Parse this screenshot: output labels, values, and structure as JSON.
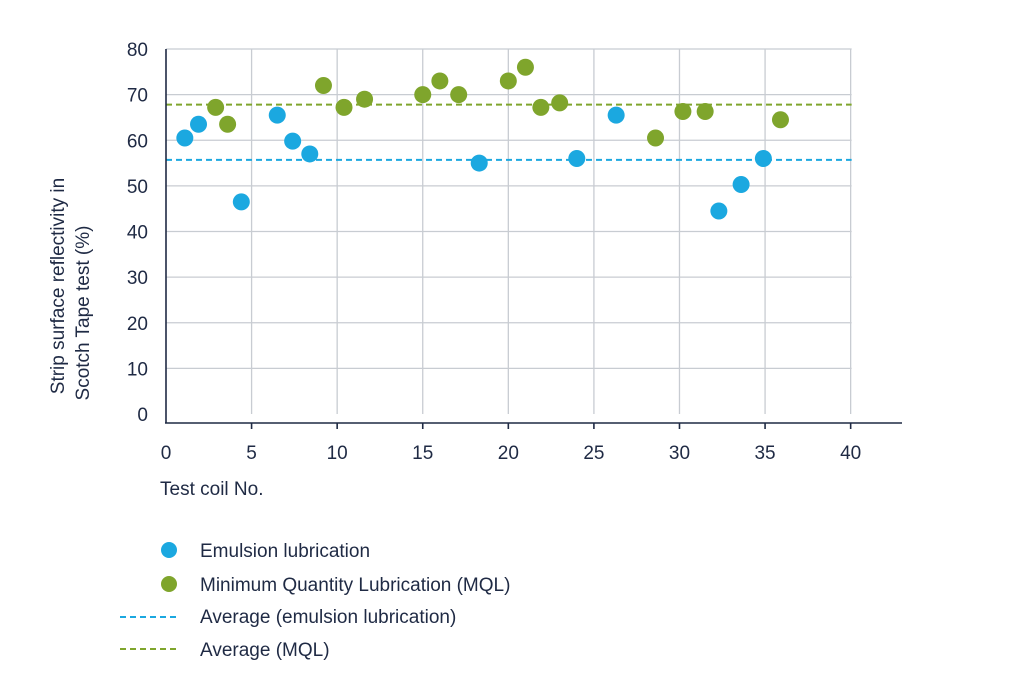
{
  "chart_data": {
    "type": "scatter",
    "xlabel": "Test coil No.",
    "ylabel_lines": [
      "Strip surface reflectivity in",
      "Scotch Tape test (%)"
    ],
    "xlim": [
      0,
      43
    ],
    "ylim": [
      0,
      80
    ],
    "xticks": [
      0,
      5,
      10,
      15,
      20,
      25,
      30,
      35,
      40
    ],
    "yticks": [
      0,
      10,
      20,
      30,
      40,
      50,
      60,
      70,
      80
    ],
    "grid": true,
    "legend_position": "bottom-left",
    "series": [
      {
        "name": "Emulsion lubrication",
        "color": "#1ba8e0",
        "marker": "circle",
        "points": [
          [
            1.1,
            60.5
          ],
          [
            1.9,
            63.5
          ],
          [
            4.4,
            46.5
          ],
          [
            6.5,
            65.5
          ],
          [
            7.4,
            59.8
          ],
          [
            8.4,
            57.0
          ],
          [
            18.3,
            55.0
          ],
          [
            24.0,
            56.0
          ],
          [
            26.3,
            65.5
          ],
          [
            32.3,
            44.5
          ],
          [
            33.6,
            50.3
          ],
          [
            34.9,
            56.0
          ]
        ]
      },
      {
        "name": "Minimum Quantity Lubrication (MQL)",
        "color": "#7fa52c",
        "marker": "circle",
        "points": [
          [
            2.9,
            67.2
          ],
          [
            3.6,
            63.5
          ],
          [
            9.2,
            72.0
          ],
          [
            10.4,
            67.2
          ],
          [
            11.6,
            69.0
          ],
          [
            15.0,
            70.0
          ],
          [
            16.0,
            73.0
          ],
          [
            17.1,
            70.0
          ],
          [
            20.0,
            73.0
          ],
          [
            21.0,
            76.0
          ],
          [
            21.9,
            67.2
          ],
          [
            23.0,
            68.2
          ],
          [
            28.6,
            60.5
          ],
          [
            30.2,
            66.3
          ],
          [
            31.5,
            66.3
          ],
          [
            35.9,
            64.5
          ]
        ]
      }
    ],
    "reference_lines": [
      {
        "name": "Average (emulsion lubrication)",
        "y": 55.7,
        "color": "#1ba8e0",
        "style": "dashed"
      },
      {
        "name": "Average (MQL)",
        "y": 67.8,
        "color": "#7fa52c",
        "style": "dashed"
      }
    ]
  },
  "legend": [
    {
      "label": "Emulsion lubrication",
      "kind": "marker",
      "color": "#1ba8e0"
    },
    {
      "label": "Minimum Quantity Lubrication (MQL)",
      "kind": "marker",
      "color": "#7fa52c"
    },
    {
      "label": "Average (emulsion lubrication)",
      "kind": "dash",
      "color": "#1ba8e0"
    },
    {
      "label": "Average (MQL)",
      "kind": "dash",
      "color": "#7fa52c"
    }
  ],
  "colors": {
    "grid": "#c8ccd2",
    "axis": "#1f2a44",
    "text": "#1f2a44"
  }
}
